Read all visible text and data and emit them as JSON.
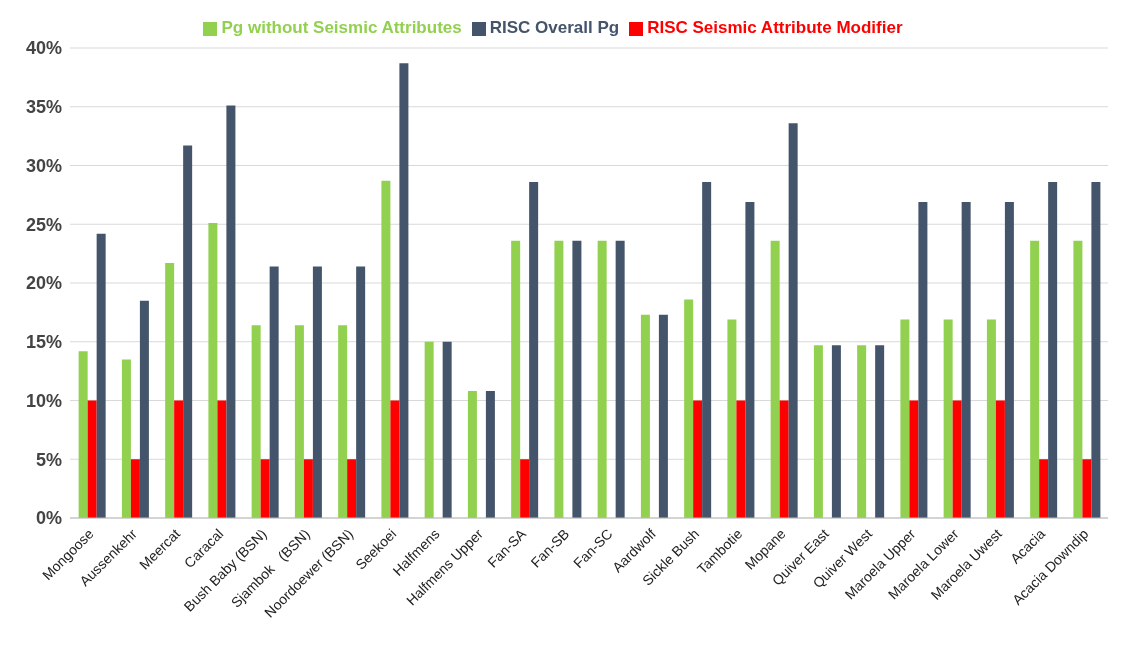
{
  "chart_data": {
    "type": "bar",
    "categories": [
      "Mongoose",
      "Aussenkehr",
      "Meercat",
      "Caracal",
      "Bush Baby (BSN)",
      "Sjambok   (BSN)",
      "Noordoewer (BSN)",
      "Seekoei",
      "Halfmens",
      "Halfmens Upper",
      "Fan-SA",
      "Fan-SB",
      "Fan-SC",
      "Aardwolf",
      "Sickle Bush",
      "Tambotie",
      "Mopane",
      "Quiver East",
      "Quiver West",
      "Maroela Upper",
      "Maroela Lower",
      "Maroela Uwest",
      "Acacia",
      "Acacia Downdip"
    ],
    "series": [
      {
        "name": "Pg without Seismic Attributes",
        "color": "#92d050",
        "values": [
          14.2,
          13.5,
          21.7,
          25.1,
          16.4,
          16.4,
          16.4,
          28.7,
          15,
          10.8,
          23.6,
          23.6,
          23.6,
          17.3,
          18.6,
          16.9,
          23.6,
          14.7,
          14.7,
          16.9,
          16.9,
          16.9,
          23.6,
          23.6
        ]
      },
      {
        "name": "RISC Seismic Attribute Modifier",
        "color": "#ff0000",
        "values": [
          10,
          5,
          10,
          10,
          5,
          5,
          5,
          10,
          0,
          0,
          5,
          0,
          0,
          0,
          10,
          10,
          10,
          0,
          0,
          10,
          10,
          10,
          5,
          5
        ]
      },
      {
        "name": "RISC Overall Pg",
        "color": "#44546a",
        "values": [
          24.2,
          18.5,
          31.7,
          35.1,
          21.4,
          21.4,
          21.4,
          38.7,
          15,
          10.8,
          28.6,
          23.6,
          23.6,
          17.3,
          28.6,
          26.9,
          33.6,
          14.7,
          14.7,
          26.9,
          26.9,
          26.9,
          28.6,
          28.6
        ]
      }
    ],
    "ylim": [
      0,
      40
    ],
    "yticks": [
      {
        "value": 0,
        "label": "0%"
      },
      {
        "value": 5,
        "label": "5%"
      },
      {
        "value": 10,
        "label": "10%"
      },
      {
        "value": 15,
        "label": "15%"
      },
      {
        "value": 20,
        "label": "20%"
      },
      {
        "value": 25,
        "label": "25%"
      },
      {
        "value": 30,
        "label": "30%"
      },
      {
        "value": 35,
        "label": "35%"
      },
      {
        "value": 40,
        "label": "40%"
      }
    ],
    "grid": "y",
    "legend": "top"
  }
}
